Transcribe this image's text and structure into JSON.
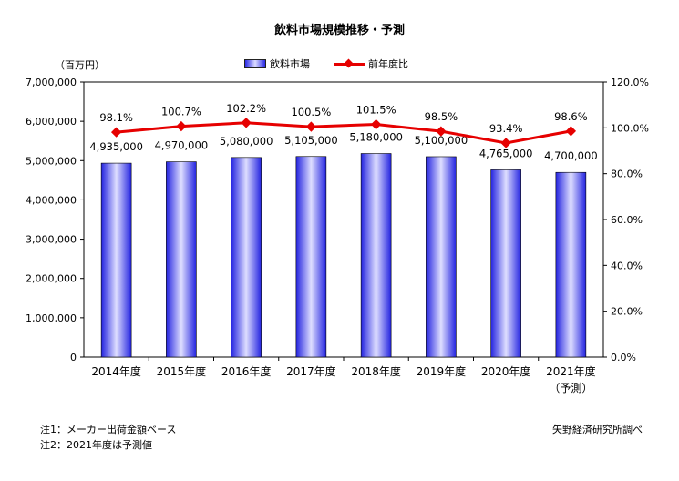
{
  "title": "飲料市場規模推移・予測",
  "unit_label": "（百万円）",
  "legend": {
    "bar_label": "飲料市場",
    "line_label": "前年度比"
  },
  "colors": {
    "bar": "#2a2ae6",
    "line": "#e60000"
  },
  "chart_data": {
    "type": "bar",
    "title": "飲料市場規模推移・予測",
    "categories": [
      "2014年度",
      "2015年度",
      "2016年度",
      "2017年度",
      "2018年度",
      "2019年度",
      "2020年度",
      "2021年度"
    ],
    "category_sublabels": [
      "",
      "",
      "",
      "",
      "",
      "",
      "",
      "（予測）"
    ],
    "series": [
      {
        "name": "飲料市場",
        "type": "bar",
        "axis": "left",
        "values": [
          4935000,
          4970000,
          5080000,
          5105000,
          5180000,
          5100000,
          4765000,
          4700000
        ],
        "labels": [
          "4,935,000",
          "4,970,000",
          "5,080,000",
          "5,105,000",
          "5,180,000",
          "5,100,000",
          "4,765,000",
          "4,700,000"
        ]
      },
      {
        "name": "前年度比",
        "type": "line",
        "axis": "right",
        "values": [
          98.1,
          100.7,
          102.2,
          100.5,
          101.5,
          98.5,
          93.4,
          98.6
        ],
        "labels": [
          "98.1%",
          "100.7%",
          "102.2%",
          "100.5%",
          "101.5%",
          "98.5%",
          "93.4%",
          "98.6%"
        ]
      }
    ],
    "y_left": {
      "range": [
        0,
        7000000
      ],
      "ticks": [
        "0",
        "1,000,000",
        "2,000,000",
        "3,000,000",
        "4,000,000",
        "5,000,000",
        "6,000,000",
        "7,000,000"
      ]
    },
    "y_right": {
      "range": [
        0,
        120
      ],
      "ticks": [
        "0.0%",
        "20.0%",
        "40.0%",
        "60.0%",
        "80.0%",
        "100.0%",
        "120.0%"
      ]
    },
    "grid": false,
    "legend_position": "top"
  },
  "notes": [
    "注1：メーカー出荷金額ベース",
    "注2：2021年度は予測値"
  ],
  "source": "矢野経済研究所調べ"
}
